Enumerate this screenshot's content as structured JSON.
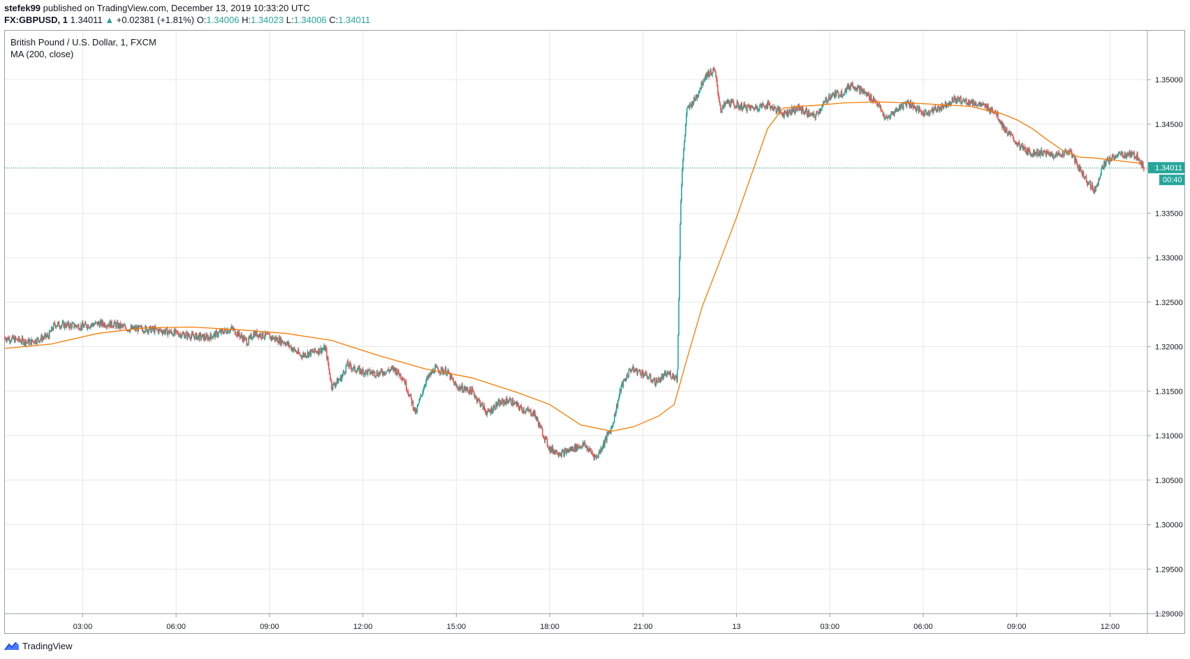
{
  "header": {
    "author": "stefek99",
    "published_text": "published on TradingView.com, December 13, 2019 10:33:20 UTC",
    "symbol": "FX:GBPUSD, 1",
    "last": "1.34011",
    "change_arrow": "▲",
    "change": "+0.02381 (+1.81%)",
    "o_label": "O:",
    "o_value": "1.34006",
    "h_label": "H:",
    "h_value": "1.34023",
    "l_label": "L:",
    "l_value": "1.34006",
    "c_label": "C:",
    "c_value": "1.34011"
  },
  "brand": {
    "name": "TradingView",
    "icon": "tradingview-logo-icon"
  },
  "colors": {
    "up": "#26a69a",
    "down": "#ef5350",
    "ma": "#f57c00",
    "grid": "#e6e6e6",
    "price_line": "#26a69a",
    "axis_text": "#131722"
  },
  "chart_data": {
    "type": "line",
    "title": "British Pound / U.S. Dollar, 1, FXCM",
    "indicator_label": "MA (200, close)",
    "x_tick_labels": [
      "03:00",
      "06:00",
      "09:00",
      "12:00",
      "15:00",
      "18:00",
      "21:00",
      "13",
      "03:00",
      "06:00",
      "09:00",
      "12:00"
    ],
    "y_tick_labels": [
      "1.35000",
      "1.34500",
      "1.34000",
      "1.33500",
      "1.33000",
      "1.32500",
      "1.32000",
      "1.31500",
      "1.31000",
      "1.30500",
      "1.30000",
      "1.29500",
      "1.29000"
    ],
    "ylim": [
      1.29,
      1.3555
    ],
    "x_unit": "hours since 00:30 Dec 12 (UTC)",
    "xlim": [
      0,
      36.7
    ],
    "last_price_label": "1.34011",
    "countdown_label": "00:40",
    "series": [
      {
        "name": "GBPUSD",
        "x": [
          0,
          0.8,
          1.4,
          1.6,
          2.0,
          2.5,
          3.0,
          3.5,
          4.0,
          4.5,
          5.0,
          5.5,
          6.0,
          6.5,
          7.0,
          7.3,
          7.8,
          8.0,
          8.5,
          9.0,
          9.5,
          10.0,
          10.3,
          10.5,
          10.8,
          11.0,
          11.2,
          11.5,
          12.0,
          12.5,
          12.8,
          13.2,
          13.5,
          13.8,
          14.2,
          14.5,
          15.0,
          15.5,
          15.8,
          16.2,
          16.6,
          17.0,
          17.5,
          17.9,
          18.2,
          18.6,
          19.0,
          19.5,
          19.8,
          20.1,
          20.5,
          20.9,
          21.3,
          21.6,
          21.7,
          21.75,
          21.9,
          22.2,
          22.5,
          22.8,
          23.0,
          23.2,
          23.6,
          24.0,
          24.5,
          25.0,
          25.5,
          26.0,
          26.5,
          26.9,
          27.2,
          27.5,
          28.0,
          28.3,
          28.7,
          29.0,
          29.5,
          30.0,
          30.5,
          31.0,
          31.3,
          31.8,
          32.1,
          32.6,
          32.9,
          33.3,
          33.8,
          34.2,
          34.6,
          35.0,
          35.3,
          35.7,
          36.1,
          36.4,
          36.5,
          36.6
        ],
        "y": [
          1.321,
          1.3205,
          1.3212,
          1.3225,
          1.3224,
          1.3223,
          1.3226,
          1.3225,
          1.322,
          1.322,
          1.3218,
          1.3215,
          1.3212,
          1.321,
          1.3217,
          1.322,
          1.3205,
          1.3215,
          1.3211,
          1.3205,
          1.319,
          1.3195,
          1.3198,
          1.3155,
          1.3165,
          1.318,
          1.3175,
          1.3172,
          1.317,
          1.3175,
          1.3165,
          1.3125,
          1.316,
          1.3175,
          1.3172,
          1.3155,
          1.315,
          1.3125,
          1.3135,
          1.314,
          1.313,
          1.3125,
          1.3085,
          1.308,
          1.3085,
          1.309,
          1.3075,
          1.311,
          1.3155,
          1.3175,
          1.317,
          1.316,
          1.317,
          1.3165,
          1.3355,
          1.3395,
          1.3465,
          1.348,
          1.3505,
          1.351,
          1.3465,
          1.3475,
          1.347,
          1.3468,
          1.3472,
          1.3462,
          1.3468,
          1.3458,
          1.3482,
          1.3485,
          1.3495,
          1.3488,
          1.3475,
          1.3455,
          1.3468,
          1.3475,
          1.3462,
          1.3468,
          1.3478,
          1.3475,
          1.3472,
          1.3465,
          1.3445,
          1.3425,
          1.3418,
          1.3418,
          1.3415,
          1.342,
          1.3395,
          1.3375,
          1.3405,
          1.3415,
          1.3416,
          1.3414,
          1.3405,
          1.3401
        ]
      },
      {
        "name": "MA (200, close)",
        "x": [
          0,
          1.5,
          3.0,
          4.5,
          6.0,
          7.5,
          9.0,
          10.5,
          12.0,
          13.5,
          15.0,
          16.5,
          17.5,
          18.5,
          19.5,
          20.2,
          21.0,
          21.5,
          21.9,
          22.4,
          22.9,
          23.5,
          24.0,
          24.5,
          25.0,
          25.5,
          26.0,
          27.0,
          28.0,
          29.0,
          30.0,
          31.0,
          32.0,
          32.5,
          33.0,
          33.5,
          34.0,
          34.5,
          35.0,
          35.5,
          36.0,
          36.5
        ],
        "y": [
          1.3198,
          1.3203,
          1.3215,
          1.3221,
          1.3222,
          1.3219,
          1.3215,
          1.3207,
          1.319,
          1.3175,
          1.3165,
          1.3148,
          1.3135,
          1.3112,
          1.3105,
          1.311,
          1.3122,
          1.3135,
          1.3185,
          1.3245,
          1.329,
          1.3345,
          1.3395,
          1.3445,
          1.3468,
          1.347,
          1.3471,
          1.3474,
          1.3475,
          1.3474,
          1.3472,
          1.347,
          1.3462,
          1.3455,
          1.3445,
          1.3432,
          1.342,
          1.3413,
          1.3412,
          1.341,
          1.3408,
          1.3406
        ]
      }
    ],
    "grid": true,
    "legend": "top-left"
  }
}
